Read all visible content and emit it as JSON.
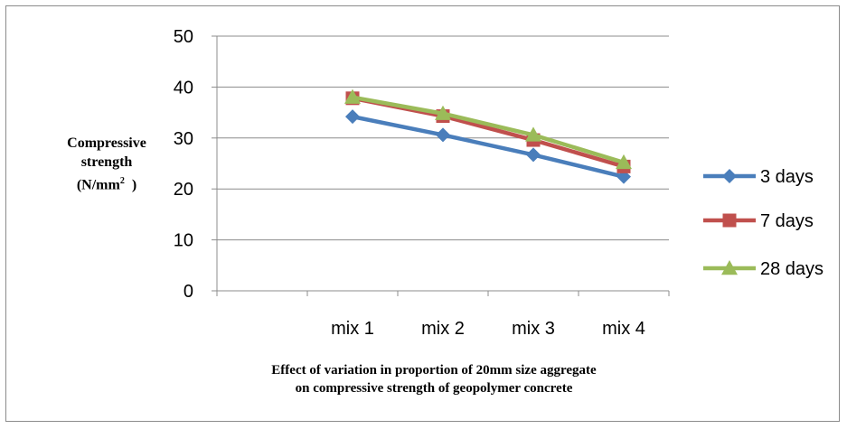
{
  "chart_data": {
    "type": "line",
    "categories": [
      "mix 1",
      "mix 2",
      "mix 3",
      "mix 4"
    ],
    "series": [
      {
        "name": "3 days",
        "values": [
          34.2,
          30.6,
          26.7,
          22.4
        ],
        "color": "#4a7ebb",
        "marker": "diamond"
      },
      {
        "name": "7 days",
        "values": [
          37.8,
          34.3,
          29.6,
          24.4
        ],
        "color": "#c0504d",
        "marker": "square"
      },
      {
        "name": "28 days",
        "values": [
          38.0,
          34.8,
          30.6,
          25.2
        ],
        "color": "#9bbb59",
        "marker": "triangle"
      }
    ],
    "ylim": [
      0,
      50
    ],
    "yticks": [
      0,
      10,
      20,
      30,
      40,
      50
    ],
    "grid": true,
    "legend": "right",
    "ylabel_lines": [
      "Compressive",
      "strength",
      "(N/mm",
      "2",
      ")"
    ],
    "xlabel_lines": [
      "Effect of variation in proportion of 20mm size aggregate",
      "on compressive strength of geopolymer concrete"
    ]
  }
}
